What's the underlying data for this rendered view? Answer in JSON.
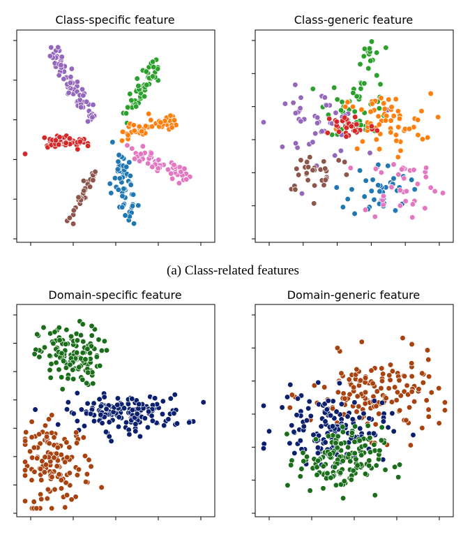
{
  "caption_a": "(a) Class-related features",
  "palette": {
    "blue": "#1f77b4",
    "orange": "#ff7f0e",
    "green": "#2ca02c",
    "red": "#d62728",
    "purple": "#9467bd",
    "brown": "#8c564b",
    "pink": "#e377c2",
    "navy": "#0a1f6e",
    "dgreen": "#1a6e1a",
    "rust": "#a8420f"
  },
  "chart_data": [
    {
      "type": "scatter",
      "title": "Class-specific feature",
      "xlim": [
        -20,
        20
      ],
      "ylim": [
        -20,
        20
      ],
      "xticks": 5,
      "yticks": 6,
      "grid": false,
      "clusters": [
        {
          "color": "purple",
          "n": 70,
          "kind": "line",
          "from": [
            -14.5,
            18.5
          ],
          "to": [
            -5,
            3.3
          ],
          "spread": 0.9
        },
        {
          "color": "green",
          "n": 55,
          "kind": "line",
          "from": [
            2,
            4.3
          ],
          "to": [
            9,
            14.5
          ],
          "spread": 0.9
        },
        {
          "color": "orange",
          "n": 50,
          "kind": "line",
          "from": [
            2.2,
            0.8
          ],
          "to": [
            13,
            3
          ],
          "spread": 0.7
        },
        {
          "color": "red",
          "n": 42,
          "kind": "line",
          "from": [
            -15,
            -1.5
          ],
          "to": [
            -6.5,
            -1.2
          ],
          "spread": 0.7
        },
        {
          "color": "red",
          "n": 2,
          "kind": "line",
          "from": [
            -21,
            -3.2
          ],
          "to": [
            -19.5,
            -4.2
          ],
          "spread": 0.1
        },
        {
          "color": "pink",
          "n": 50,
          "kind": "line",
          "from": [
            3.6,
            -2.5
          ],
          "to": [
            15.8,
            -8.5
          ],
          "spread": 0.7
        },
        {
          "color": "brown",
          "n": 32,
          "kind": "line",
          "from": [
            -10,
            -17.5
          ],
          "to": [
            -4.5,
            -6.5
          ],
          "spread": 0.6
        },
        {
          "color": "blue",
          "n": 55,
          "kind": "line",
          "from": [
            1,
            -4.5
          ],
          "to": [
            2.4,
            -16.5
          ],
          "spread": 1.1
        },
        {
          "color": "blue",
          "n": 1,
          "kind": "line",
          "from": [
            -0.7,
            -1.2
          ],
          "to": [
            -0.7,
            -1.2
          ],
          "spread": 0
        }
      ]
    },
    {
      "type": "scatter",
      "title": "Class-generic feature",
      "xlim": [
        -20,
        20
      ],
      "ylim": [
        -20,
        20
      ],
      "xticks": 6,
      "yticks": 7,
      "grid": false,
      "clusters": [
        {
          "color": "green",
          "n": 12,
          "kind": "blob",
          "center": [
            3.5,
            16.5
          ],
          "sd": [
            1.4,
            2.0
          ]
        },
        {
          "color": "green",
          "n": 45,
          "kind": "blob",
          "center": [
            1,
            6.5
          ],
          "sd": [
            3.5,
            3
          ]
        },
        {
          "color": "purple",
          "n": 45,
          "kind": "blob",
          "center": [
            -8.5,
            2.5
          ],
          "sd": [
            5,
            3.5
          ]
        },
        {
          "color": "orange",
          "n": 60,
          "kind": "blob",
          "center": [
            6.5,
            2.5
          ],
          "sd": [
            5,
            3
          ]
        },
        {
          "color": "red",
          "n": 35,
          "kind": "blob",
          "center": [
            -1,
            2
          ],
          "sd": [
            2.8,
            1.4
          ]
        },
        {
          "color": "brown",
          "n": 30,
          "kind": "blob",
          "center": [
            -8,
            -7
          ],
          "sd": [
            4,
            2.3
          ]
        },
        {
          "color": "blue",
          "n": 40,
          "kind": "blob",
          "center": [
            5.5,
            -11
          ],
          "sd": [
            3.2,
            2.8
          ]
        },
        {
          "color": "pink",
          "n": 35,
          "kind": "blob",
          "center": [
            11,
            -10
          ],
          "sd": [
            4.5,
            3.3
          ]
        }
      ]
    },
    {
      "type": "scatter",
      "title": "Domain-specific feature",
      "xlim": [
        -20,
        20
      ],
      "ylim": [
        -20,
        20
      ],
      "xticks": 5,
      "yticks": 8,
      "grid": false,
      "clusters": [
        {
          "color": "dgreen",
          "n": 130,
          "kind": "blob",
          "center": [
            -10,
            11
          ],
          "sd": [
            3.4,
            3.0
          ]
        },
        {
          "color": "navy",
          "n": 150,
          "kind": "blob",
          "center": [
            2,
            -0.5
          ],
          "sd": [
            6.5,
            1.8
          ]
        },
        {
          "color": "rust",
          "n": 135,
          "kind": "blob",
          "center": [
            -13,
            -11
          ],
          "sd": [
            3.8,
            4.2
          ]
        }
      ]
    },
    {
      "type": "scatter",
      "title": "Domain-generic feature",
      "xlim": [
        -20,
        20
      ],
      "ylim": [
        -20,
        20
      ],
      "xticks": 5,
      "yticks": 7,
      "grid": false,
      "clusters": [
        {
          "color": "rust",
          "n": 150,
          "kind": "blob",
          "center": [
            4.5,
            3
          ],
          "sd": [
            7,
            4
          ]
        },
        {
          "color": "navy",
          "n": 130,
          "kind": "blob",
          "center": [
            -5,
            -3.5
          ],
          "sd": [
            6,
            3.5
          ]
        },
        {
          "color": "dgreen",
          "n": 140,
          "kind": "blob",
          "center": [
            -3,
            -10
          ],
          "sd": [
            4.5,
            3.3
          ]
        }
      ]
    }
  ]
}
